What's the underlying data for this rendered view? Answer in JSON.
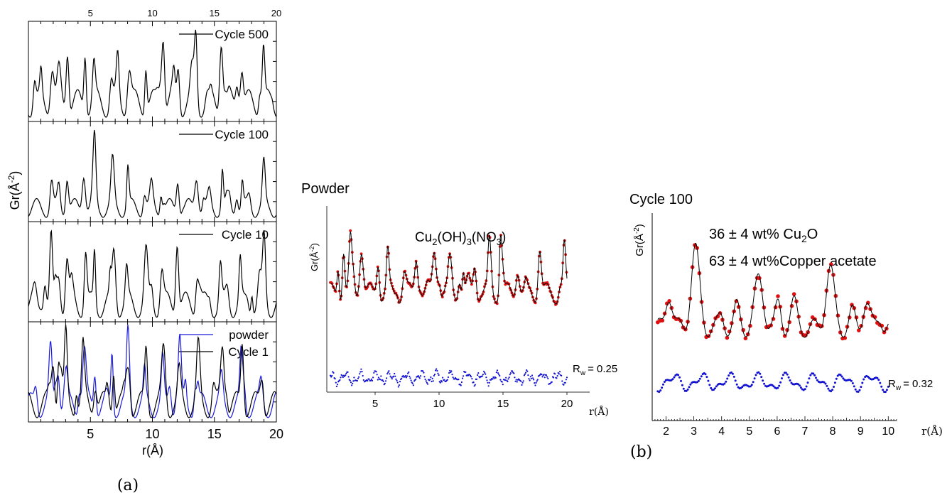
{
  "figure": {
    "label_a": "(a)",
    "label_b": "(b)"
  },
  "chart_data": [
    {
      "type": "line",
      "title": "",
      "xlabel": "r(Å)",
      "ylabel": "Gr(Å",
      "ylabel_sup": "-2",
      "ylabel_close": ")",
      "xlim": [
        0,
        20
      ],
      "x_ticks_bottom": [
        5,
        10,
        15,
        20
      ],
      "x_ticks_top": [
        5,
        10,
        15,
        20
      ],
      "grid": false,
      "panels": [
        {
          "legend": [
            "Cycle 500"
          ],
          "series": [
            {
              "name": "Cycle 500",
              "color": "#000000",
              "seed": 1
            }
          ]
        },
        {
          "legend": [
            "Cycle 100"
          ],
          "series": [
            {
              "name": "Cycle 100",
              "color": "#000000",
              "seed": 2
            }
          ]
        },
        {
          "legend": [
            "Cycle 10"
          ],
          "series": [
            {
              "name": "Cycle 10",
              "color": "#000000",
              "seed": 3
            }
          ]
        },
        {
          "legend": [
            "powder",
            "Cycle 1"
          ],
          "series": [
            {
              "name": "powder",
              "color": "#1a1adb",
              "seed": 4
            },
            {
              "name": "Cycle 1",
              "color": "#000000",
              "seed": 5
            }
          ]
        }
      ],
      "peaks_x": [
        1.9,
        2.4,
        3.1,
        4.5,
        5.3,
        6.8,
        8.0,
        9.4,
        10.8,
        12.1,
        13.6,
        15.6,
        17.2,
        18.9
      ]
    },
    {
      "type": "line",
      "title": "Powder",
      "annotation": "Cu",
      "annotation_parts": [
        "Cu",
        "2",
        "(OH)",
        "3",
        "(NO",
        "3",
        ")"
      ],
      "xlabel": "r(Å)",
      "ylabel": "Gr(Å",
      "ylabel_sup": "-2",
      "ylabel_close": ")",
      "xlim": [
        1.5,
        20
      ],
      "x_ticks": [
        5,
        10,
        15,
        20
      ],
      "rw_label": "R",
      "rw_sub": "w",
      "rw_value": "= 0.25",
      "series": [
        {
          "name": "data",
          "color": "#e01010",
          "style": "points"
        },
        {
          "name": "fit",
          "color": "#000000",
          "style": "line"
        },
        {
          "name": "difference",
          "color": "#1010d0",
          "style": "points"
        }
      ]
    },
    {
      "type": "line",
      "title": "Cycle 100",
      "annotation_line1": [
        "36 ",
        "±",
        " 4 wt% Cu",
        "2",
        "O"
      ],
      "annotation_line2": [
        "63 ",
        "±",
        " 4 wt%Copper acetate"
      ],
      "xlabel": "r(Å)",
      "ylabel": "Gr(Å",
      "ylabel_sup": "-2",
      "ylabel_close": ")",
      "xlim": [
        1.5,
        10.3
      ],
      "x_ticks": [
        2,
        3,
        4,
        5,
        6,
        7,
        8,
        9,
        10
      ],
      "rw_label": "R",
      "rw_sub": "w",
      "rw_value": "= 0.32",
      "peaks_x": [
        2.1,
        3.05,
        4.0,
        4.65,
        5.4,
        6.1,
        6.6,
        7.9,
        8.7,
        9.2,
        9.8
      ],
      "series": [
        {
          "name": "data",
          "color": "#e01010",
          "style": "points"
        },
        {
          "name": "fit",
          "color": "#000000",
          "style": "line"
        },
        {
          "name": "difference",
          "color": "#1010d0",
          "style": "points"
        }
      ]
    }
  ]
}
